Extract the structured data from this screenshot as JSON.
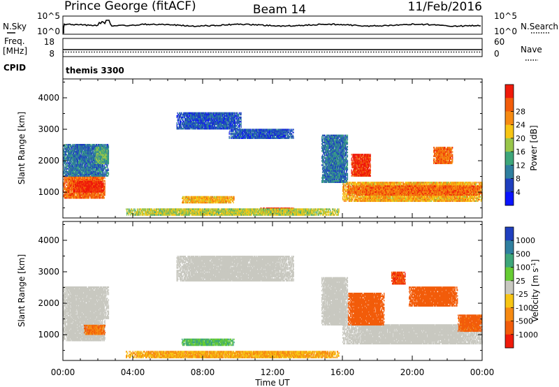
{
  "header": {
    "title": "Prince George (fitACF)",
    "beam": "Beam 14",
    "date": "11/Feb/2016"
  },
  "strip_nsky": {
    "left_label": "N.Sky",
    "left_ticks": [
      "10^5",
      "10^0"
    ],
    "right_ticks": [
      "10^5",
      "10^0"
    ],
    "right_label": "N.Search"
  },
  "strip_freq": {
    "left_label_line1": "Freq.",
    "left_label_line2": "[MHz]",
    "left_ticks": [
      "18",
      "8"
    ],
    "right_ticks": [
      "60",
      "0"
    ],
    "right_label": "Nave",
    "cpid_label": "CPID",
    "cpid_value": "themis 3300"
  },
  "x_axis": {
    "label": "Time UT",
    "ticks": [
      "00:00",
      "04:00",
      "08:00",
      "12:00",
      "16:00",
      "20:00",
      "00:00"
    ]
  },
  "chart_data": [
    {
      "type": "heatmap",
      "name": "power-panel",
      "ylabel": "Slant Range [km]",
      "xlabel": "Time UT",
      "xlim": [
        0,
        24
      ],
      "ylim": [
        180,
        4600
      ],
      "yticks": [
        "1000",
        "2000",
        "3000",
        "4000"
      ],
      "yticks_values": [
        1000,
        2000,
        3000,
        4000
      ],
      "colorbar": {
        "label": "Power [dB]",
        "ticks": [
          "4",
          "8",
          "12",
          "16",
          "20",
          "24",
          "28"
        ],
        "tick_values": [
          4,
          8,
          12,
          16,
          20,
          24,
          28
        ],
        "range": [
          0,
          30
        ],
        "colors": [
          "#0a14ff",
          "#1f3fbf",
          "#2f7f9f",
          "#3ea67a",
          "#99c64a",
          "#f7c514",
          "#f68a12",
          "#f25c0a",
          "#ef1a0a"
        ]
      },
      "regions": [
        {
          "t0": 0.0,
          "t1": 2.4,
          "r0": 800,
          "r1": 1500,
          "level": 24
        },
        {
          "t0": 0.6,
          "t1": 2.3,
          "r0": 1000,
          "r1": 1350,
          "level": 28
        },
        {
          "t0": 0.0,
          "t1": 2.6,
          "r0": 1500,
          "r1": 2500,
          "level": 8
        },
        {
          "t0": 1.8,
          "t1": 2.6,
          "r0": 1900,
          "r1": 2400,
          "level": 12
        },
        {
          "t0": 6.8,
          "t1": 9.8,
          "r0": 650,
          "r1": 850,
          "level": 20
        },
        {
          "t0": 11.3,
          "t1": 13.2,
          "r0": 330,
          "r1": 500,
          "level": 28
        },
        {
          "t0": 3.6,
          "t1": 15.8,
          "r0": 260,
          "r1": 480,
          "level": 16
        },
        {
          "t0": 6.5,
          "t1": 10.2,
          "r0": 3000,
          "r1": 3500,
          "level": 6
        },
        {
          "t0": 9.5,
          "t1": 13.2,
          "r0": 2700,
          "r1": 3000,
          "level": 6
        },
        {
          "t0": 16.0,
          "t1": 24.0,
          "r0": 700,
          "r1": 1300,
          "level": 20
        },
        {
          "t0": 16.3,
          "t1": 24.0,
          "r0": 900,
          "r1": 1200,
          "level": 24
        },
        {
          "t0": 16.5,
          "t1": 17.6,
          "r0": 1500,
          "r1": 2200,
          "level": 28
        },
        {
          "t0": 21.2,
          "t1": 22.3,
          "r0": 1900,
          "r1": 2400,
          "level": 24
        },
        {
          "t0": 14.8,
          "t1": 16.3,
          "r0": 1300,
          "r1": 2800,
          "level": 8
        }
      ]
    },
    {
      "type": "heatmap",
      "name": "velocity-panel",
      "ylabel": "Slant Range [km]",
      "xlabel": "Time UT",
      "xlim": [
        0,
        24
      ],
      "ylim": [
        180,
        4600
      ],
      "yticks": [
        "1000",
        "2000",
        "3000",
        "4000"
      ],
      "yticks_values": [
        1000,
        2000,
        3000,
        4000
      ],
      "colorbar": {
        "label": "Velocity [m s^-1]",
        "ticks": [
          "1000",
          "500",
          "100",
          "25",
          "-25",
          "-100",
          "-500",
          "-1000"
        ],
        "tick_values": [
          1000,
          500,
          100,
          25,
          -25,
          -100,
          -500,
          -1000
        ],
        "colors": [
          "#1f3fbf",
          "#2f7f9f",
          "#3ea67a",
          "#66cc33",
          "#c8c8c0",
          "#f7c514",
          "#f68a12",
          "#f25c0a",
          "#ef1a0a"
        ]
      },
      "regions": [
        {
          "t0": 0.0,
          "t1": 2.4,
          "r0": 800,
          "r1": 1500,
          "level": 0
        },
        {
          "t0": 1.2,
          "t1": 2.4,
          "r0": 1000,
          "r1": 1300,
          "level": -300
        },
        {
          "t0": 0.0,
          "t1": 2.6,
          "r0": 1500,
          "r1": 2500,
          "level": 0
        },
        {
          "t0": 6.8,
          "t1": 9.8,
          "r0": 650,
          "r1": 850,
          "level": 60
        },
        {
          "t0": 3.6,
          "t1": 15.8,
          "r0": 260,
          "r1": 480,
          "level": -60
        },
        {
          "t0": 6.5,
          "t1": 13.2,
          "r0": 2700,
          "r1": 3500,
          "level": 0
        },
        {
          "t0": 16.0,
          "t1": 24.0,
          "r0": 700,
          "r1": 1300,
          "level": 0
        },
        {
          "t0": 16.3,
          "t1": 18.4,
          "r0": 1300,
          "r1": 2300,
          "level": -500
        },
        {
          "t0": 18.8,
          "t1": 19.6,
          "r0": 2600,
          "r1": 3000,
          "level": -700
        },
        {
          "t0": 19.8,
          "t1": 22.6,
          "r0": 1900,
          "r1": 2500,
          "level": -500
        },
        {
          "t0": 22.6,
          "t1": 24.0,
          "r0": 1100,
          "r1": 1600,
          "level": -400
        },
        {
          "t0": 14.8,
          "t1": 16.3,
          "r0": 1300,
          "r1": 2800,
          "level": 0
        }
      ]
    }
  ]
}
